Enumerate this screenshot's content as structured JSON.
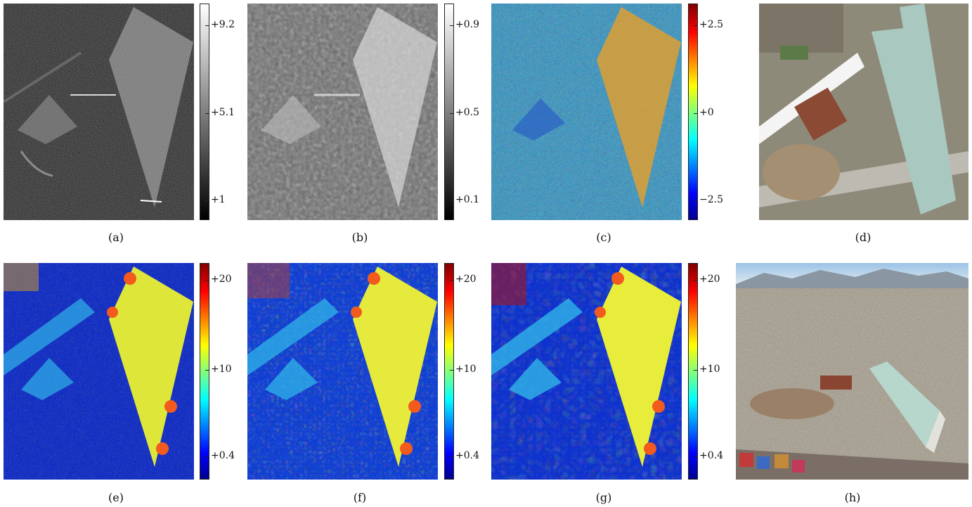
{
  "panels": [
    {
      "label": "(a)",
      "colorbar": "gray",
      "ticks": [
        "+9.2",
        "+5.1",
        "+1"
      ]
    },
    {
      "label": "(b)",
      "colorbar": "gray",
      "ticks": [
        "+0.9",
        "+0.5",
        "+0.1"
      ]
    },
    {
      "label": "(c)",
      "colorbar": "jet",
      "ticks": [
        "+2.5",
        "+0",
        "−2.5"
      ]
    },
    {
      "label": "(d)"
    },
    {
      "label": "(e)",
      "colorbar": "jet",
      "ticks": [
        "+20",
        "+10",
        "+0.4"
      ]
    },
    {
      "label": "(f)",
      "colorbar": "jet",
      "ticks": [
        "+20",
        "+10",
        "+0.4"
      ]
    },
    {
      "label": "(g)",
      "colorbar": "jet",
      "ticks": [
        "+20",
        "+10",
        "+0.4"
      ]
    },
    {
      "label": "(h)"
    }
  ],
  "colors": {
    "sar_dark": "#1a1a1a",
    "sar_bright": "#d8d8d8",
    "jet_low": "#00008f",
    "jet_mid": "#7fff7f",
    "jet_high": "#800000",
    "roof": "#a9c8c0",
    "sky": "#9cc3e6"
  }
}
